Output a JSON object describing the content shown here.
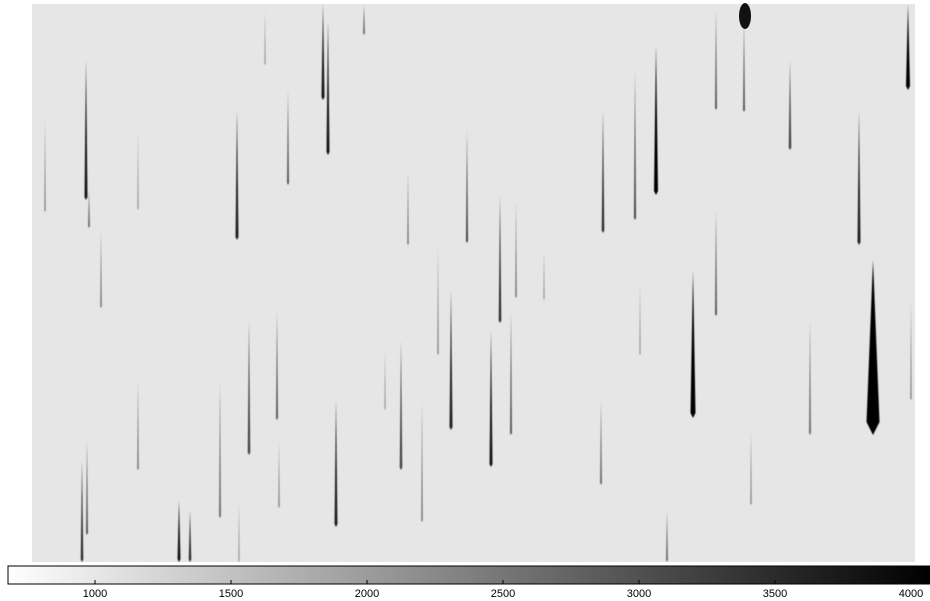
{
  "chart_data": {
    "type": "image-colorbar",
    "colorbar": {
      "lim": [
        680,
        4070
      ],
      "ticks": [
        1000,
        1500,
        2000,
        2500,
        3000,
        3500,
        4000
      ]
    }
  }
}
